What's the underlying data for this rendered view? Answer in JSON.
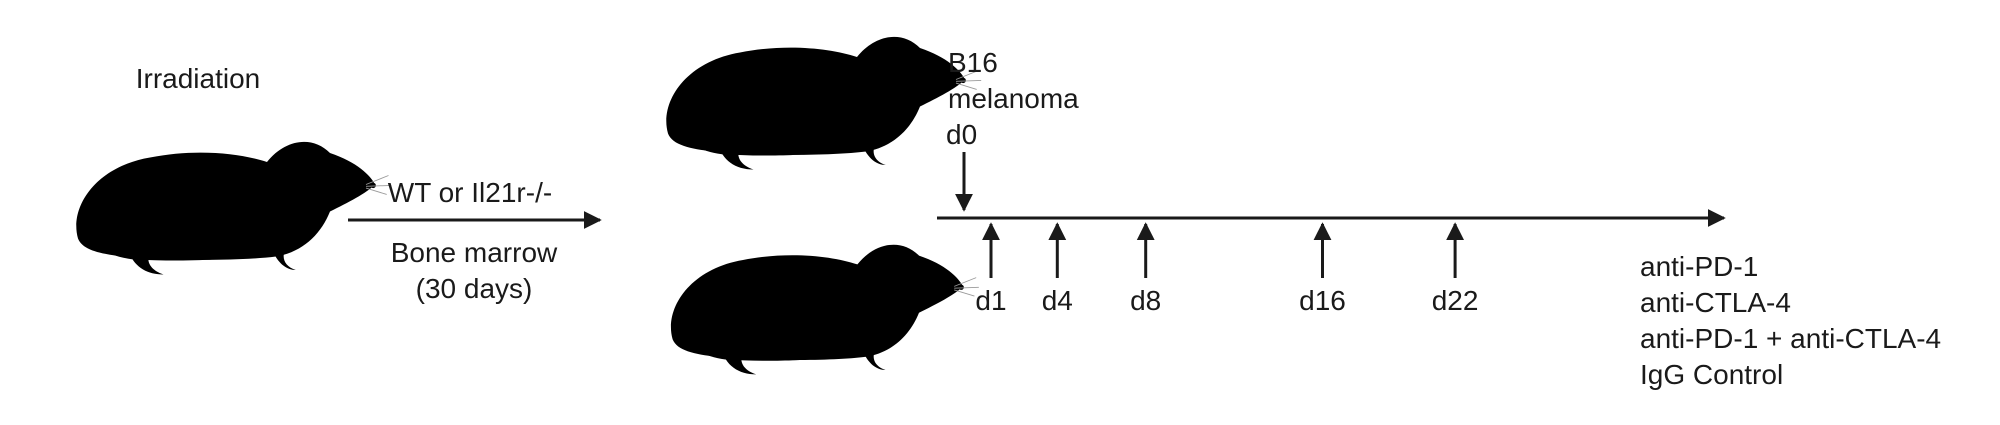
{
  "labels": {
    "irradiation": "Irradiation",
    "transfer_line1": "WT or Il21r-/-",
    "transfer_line2": "Bone marrow",
    "transfer_line3": "(30 days)",
    "tumor_line1": "B16",
    "tumor_line2": "melanoma",
    "tumor_day": "d0"
  },
  "timeline": {
    "treatment_days": [
      {
        "label": "d1",
        "day": 1
      },
      {
        "label": "d4",
        "day": 4
      },
      {
        "label": "d8",
        "day": 8
      },
      {
        "label": "d16",
        "day": 16
      },
      {
        "label": "d22",
        "day": 22
      }
    ]
  },
  "treatments": [
    "anti-PD-1",
    "anti-CTLA-4",
    "anti-PD-1 + anti-CTLA-4",
    "IgG Control"
  ],
  "colors": {
    "white_mouse_body": "#e4e2dd",
    "white_mouse_shade": "#c9c6bf",
    "brown_mouse_body": "#c98e52",
    "brown_mouse_shade": "#a8733f",
    "pink": "#e3a3a3",
    "tail": "#dca3a3",
    "eye_red": "#b22222",
    "arrow": "#1a1a1a"
  }
}
